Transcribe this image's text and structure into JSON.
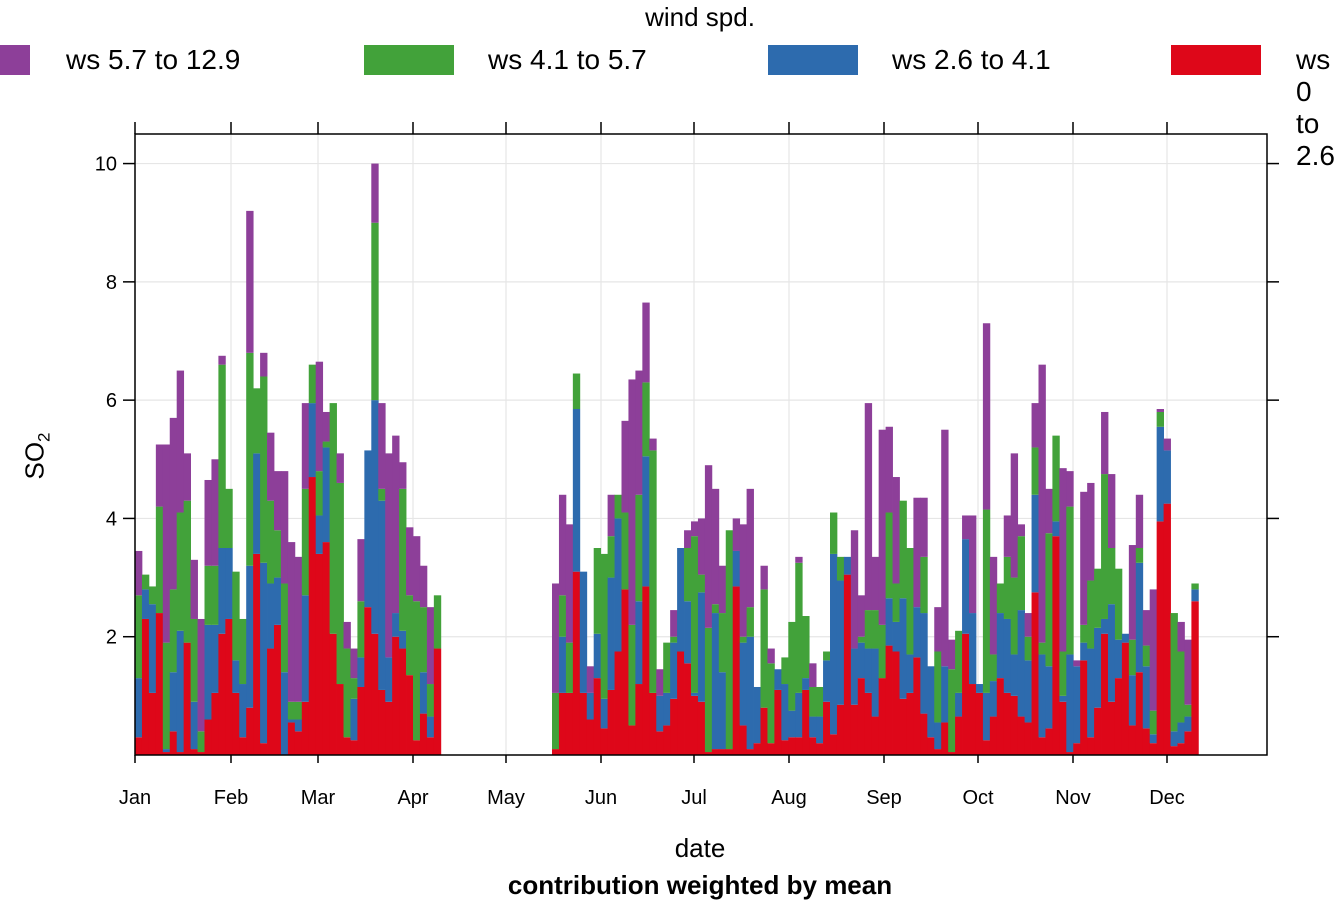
{
  "legend": {
    "title": "wind spd.",
    "items": [
      {
        "label": "ws 5.7 to 12.9",
        "color": "#8D3F99"
      },
      {
        "label": "ws 4.1 to 5.7",
        "color": "#42A23A"
      },
      {
        "label": "ws 2.6 to 4.1",
        "color": "#2D6BAE"
      },
      {
        "label": "ws 0 to 2.6",
        "color": "#DE0719"
      }
    ]
  },
  "axes": {
    "xlabel": "date",
    "ylabel_main": "SO",
    "ylabel_sub": "2",
    "subtitle": "contribution weighted by mean"
  },
  "chart_data": {
    "type": "bar",
    "stacked": true,
    "x_axis": "date (approx. 3-day bins over one year)",
    "x_ticks": [
      "Jan",
      "Feb",
      "Mar",
      "Apr",
      "May",
      "Jun",
      "Jul",
      "Aug",
      "Sep",
      "Oct",
      "Nov",
      "Dec"
    ],
    "ylim": [
      0,
      10.5
    ],
    "y_ticks": [
      2,
      4,
      6,
      8,
      10
    ],
    "grid": true,
    "legend_position": "top",
    "xlabel": "date",
    "ylabel": "SO2",
    "subtitle": "contribution weighted by mean",
    "stack_order_bottom_to_top": [
      "ws 0 to 2.6",
      "ws 2.6 to 4.1",
      "ws 4.1 to 5.7",
      "ws 5.7 to 12.9"
    ],
    "bars": [
      [
        0.3,
        1.3,
        2.7,
        3.45
      ],
      [
        2.3,
        2.8,
        3.05,
        3.05
      ],
      [
        1.05,
        2.55,
        2.85,
        2.85
      ],
      [
        2.4,
        2.4,
        4.2,
        5.25
      ],
      [
        0.05,
        0.1,
        1.9,
        5.25
      ],
      [
        0.4,
        1.4,
        2.8,
        5.7
      ],
      [
        0.05,
        2.1,
        4.1,
        6.5
      ],
      [
        1.9,
        1.9,
        4.3,
        5.1
      ],
      [
        0.1,
        0.9,
        2.3,
        3.3
      ],
      [
        0.05,
        0.05,
        0.4,
        2.3
      ],
      [
        0.6,
        2.2,
        3.2,
        4.65
      ],
      [
        1.05,
        2.2,
        3.2,
        5.0
      ],
      [
        2.05,
        3.5,
        6.6,
        6.75
      ],
      [
        2.3,
        3.5,
        4.5,
        4.5
      ],
      [
        1.05,
        1.6,
        3.1,
        3.1
      ],
      [
        0.3,
        1.2,
        2.3,
        2.3
      ],
      [
        0.8,
        3.2,
        6.8,
        9.2
      ],
      [
        3.4,
        5.1,
        6.2,
        6.2
      ],
      [
        0.2,
        3.25,
        6.4,
        6.8
      ],
      [
        1.8,
        2.9,
        4.3,
        5.45
      ],
      [
        2.2,
        3.0,
        3.8,
        4.8
      ],
      [
        0.0,
        1.4,
        2.9,
        4.8
      ],
      [
        0.55,
        0.6,
        0.9,
        3.6
      ],
      [
        0.4,
        0.6,
        0.9,
        3.35
      ],
      [
        0.9,
        2.7,
        4.5,
        5.95
      ],
      [
        4.7,
        5.95,
        6.6,
        6.6
      ],
      [
        3.4,
        4.05,
        4.8,
        6.65
      ],
      [
        3.6,
        5.2,
        5.3,
        5.8
      ],
      [
        2.05,
        2.05,
        5.95,
        5.95
      ],
      [
        1.2,
        1.2,
        4.6,
        5.1
      ],
      [
        0.3,
        0.3,
        1.8,
        2.25
      ],
      [
        0.25,
        0.95,
        1.3,
        1.8
      ],
      [
        1.15,
        1.65,
        2.6,
        3.65
      ],
      [
        2.5,
        5.15,
        5.15,
        5.15
      ],
      [
        2.05,
        6.0,
        9.0,
        10.0
      ],
      [
        1.1,
        4.3,
        4.5,
        5.95
      ],
      [
        0.9,
        1.65,
        1.65,
        5.1
      ],
      [
        2.0,
        2.4,
        2.4,
        5.4
      ],
      [
        1.8,
        2.1,
        4.5,
        4.95
      ],
      [
        1.35,
        1.35,
        2.7,
        3.85
      ],
      [
        0.25,
        0.25,
        2.6,
        3.7
      ],
      [
        0.7,
        1.4,
        2.5,
        3.2
      ],
      [
        0.3,
        0.65,
        1.2,
        2.5
      ],
      [
        1.8,
        1.8,
        2.7,
        2.7
      ]
    ],
    "bars_after_gap": [
      [
        0.1,
        0.1,
        1.05,
        2.9
      ],
      [
        1.05,
        2.0,
        2.7,
        4.4
      ],
      [
        1.05,
        1.05,
        1.9,
        3.9
      ],
      [
        3.1,
        5.85,
        6.45,
        6.45
      ],
      [
        1.05,
        3.1,
        3.1,
        3.1
      ],
      [
        0.6,
        1.05,
        1.05,
        1.5
      ],
      [
        1.3,
        2.05,
        3.5,
        3.5
      ],
      [
        0.45,
        0.95,
        3.4,
        3.4
      ],
      [
        1.1,
        3.0,
        3.7,
        4.4
      ],
      [
        1.75,
        4.0,
        4.4,
        4.4
      ],
      [
        2.8,
        2.8,
        4.1,
        5.65
      ],
      [
        0.5,
        0.5,
        2.2,
        6.35
      ],
      [
        1.2,
        2.6,
        4.4,
        6.5
      ],
      [
        2.85,
        5.05,
        6.3,
        7.65
      ],
      [
        1.05,
        1.05,
        5.15,
        5.35
      ],
      [
        0.4,
        1.0,
        1.0,
        1.45
      ],
      [
        0.5,
        1.05,
        1.9,
        1.9
      ],
      [
        0.95,
        1.9,
        2.0,
        2.45
      ],
      [
        1.75,
        3.5,
        3.5,
        3.5
      ],
      [
        1.55,
        2.6,
        3.5,
        3.8
      ],
      [
        1.0,
        1.05,
        3.7,
        3.95
      ],
      [
        0.9,
        2.75,
        3.05,
        4.0
      ],
      [
        0.05,
        0.05,
        2.15,
        4.9
      ],
      [
        0.1,
        2.4,
        2.55,
        4.5
      ],
      [
        0.1,
        1.4,
        2.4,
        3.2
      ],
      [
        0.1,
        0.1,
        3.8,
        3.8
      ],
      [
        2.85,
        3.45,
        3.45,
        4.0
      ],
      [
        0.5,
        1.9,
        2.0,
        3.9
      ],
      [
        0.1,
        2.0,
        2.5,
        4.5
      ],
      [
        0.2,
        1.15,
        1.15,
        1.15
      ],
      [
        0.8,
        0.8,
        2.8,
        3.2
      ],
      [
        0.2,
        0.2,
        1.55,
        1.8
      ],
      [
        1.1,
        1.45,
        1.45,
        1.45
      ],
      [
        0.25,
        1.2,
        1.65,
        1.65
      ],
      [
        0.3,
        0.75,
        2.25,
        2.25
      ],
      [
        0.3,
        1.05,
        3.25,
        3.35
      ],
      [
        1.1,
        1.3,
        2.35,
        2.35
      ],
      [
        0.3,
        0.65,
        1.15,
        1.55
      ],
      [
        0.2,
        0.65,
        1.15,
        1.15
      ],
      [
        0.9,
        1.6,
        1.75,
        1.75
      ],
      [
        0.35,
        3.4,
        4.1,
        4.1
      ],
      [
        0.85,
        2.95,
        3.35,
        3.35
      ],
      [
        3.05,
        3.35,
        3.35,
        3.35
      ],
      [
        0.85,
        1.8,
        1.8,
        3.8
      ],
      [
        1.3,
        1.9,
        2.0,
        2.7
      ],
      [
        1.05,
        1.8,
        2.45,
        5.95
      ],
      [
        0.65,
        1.8,
        2.45,
        3.35
      ],
      [
        1.3,
        1.3,
        2.2,
        5.5
      ],
      [
        1.85,
        2.65,
        4.1,
        5.55
      ],
      [
        1.75,
        2.25,
        2.9,
        4.7
      ],
      [
        0.95,
        2.65,
        4.3,
        4.3
      ],
      [
        1.05,
        1.7,
        3.5,
        3.5
      ],
      [
        1.65,
        2.5,
        2.5,
        4.35
      ],
      [
        0.7,
        2.4,
        3.35,
        4.35
      ],
      [
        0.3,
        1.5,
        1.5,
        1.5
      ],
      [
        0.1,
        0.55,
        1.75,
        2.5
      ],
      [
        0.55,
        1.5,
        1.5,
        5.5
      ],
      [
        0.05,
        0.05,
        1.45,
        1.95
      ],
      [
        0.65,
        1.05,
        2.1,
        2.1
      ],
      [
        2.05,
        3.65,
        3.65,
        4.05
      ],
      [
        1.2,
        2.4,
        2.4,
        4.05
      ],
      [
        1.05,
        1.2,
        1.2,
        1.2
      ],
      [
        0.25,
        1.05,
        4.15,
        7.3
      ],
      [
        0.65,
        1.25,
        1.7,
        3.35
      ],
      [
        1.3,
        2.4,
        2.9,
        2.9
      ],
      [
        1.05,
        2.3,
        3.35,
        4.05
      ],
      [
        1.0,
        1.7,
        3.0,
        5.1
      ],
      [
        0.65,
        2.45,
        3.7,
        3.9
      ],
      [
        0.55,
        1.6,
        2.0,
        2.4
      ],
      [
        2.75,
        4.4,
        5.2,
        5.95
      ],
      [
        0.3,
        1.7,
        1.9,
        6.6
      ],
      [
        0.45,
        1.5,
        3.75,
        4.5
      ],
      [
        3.7,
        3.95,
        5.4,
        5.4
      ],
      [
        0.9,
        1.0,
        1.75,
        4.85
      ],
      [
        0.05,
        1.7,
        4.2,
        4.8
      ],
      [
        0.2,
        1.5,
        1.5,
        1.6
      ],
      [
        1.6,
        1.9,
        2.2,
        4.45
      ],
      [
        0.3,
        1.8,
        2.95,
        4.6
      ],
      [
        0.8,
        2.15,
        3.15,
        3.15
      ],
      [
        2.05,
        2.3,
        4.75,
        5.8
      ],
      [
        0.9,
        2.55,
        3.5,
        4.75
      ],
      [
        1.3,
        1.95,
        3.15,
        3.15
      ],
      [
        1.9,
        2.05,
        2.05,
        2.05
      ],
      [
        0.5,
        1.35,
        1.95,
        3.55
      ],
      [
        1.4,
        3.25,
        3.5,
        4.4
      ],
      [
        0.45,
        1.5,
        1.85,
        2.45
      ],
      [
        0.2,
        0.35,
        0.75,
        2.8
      ],
      [
        3.95,
        5.55,
        5.8,
        5.85
      ],
      [
        4.25,
        5.15,
        5.15,
        5.35
      ],
      [
        0.15,
        0.4,
        2.4,
        2.4
      ],
      [
        0.2,
        0.55,
        1.75,
        2.25
      ],
      [
        0.4,
        0.65,
        0.85,
        1.95
      ],
      [
        2.6,
        2.8,
        2.9,
        2.9
      ]
    ]
  }
}
